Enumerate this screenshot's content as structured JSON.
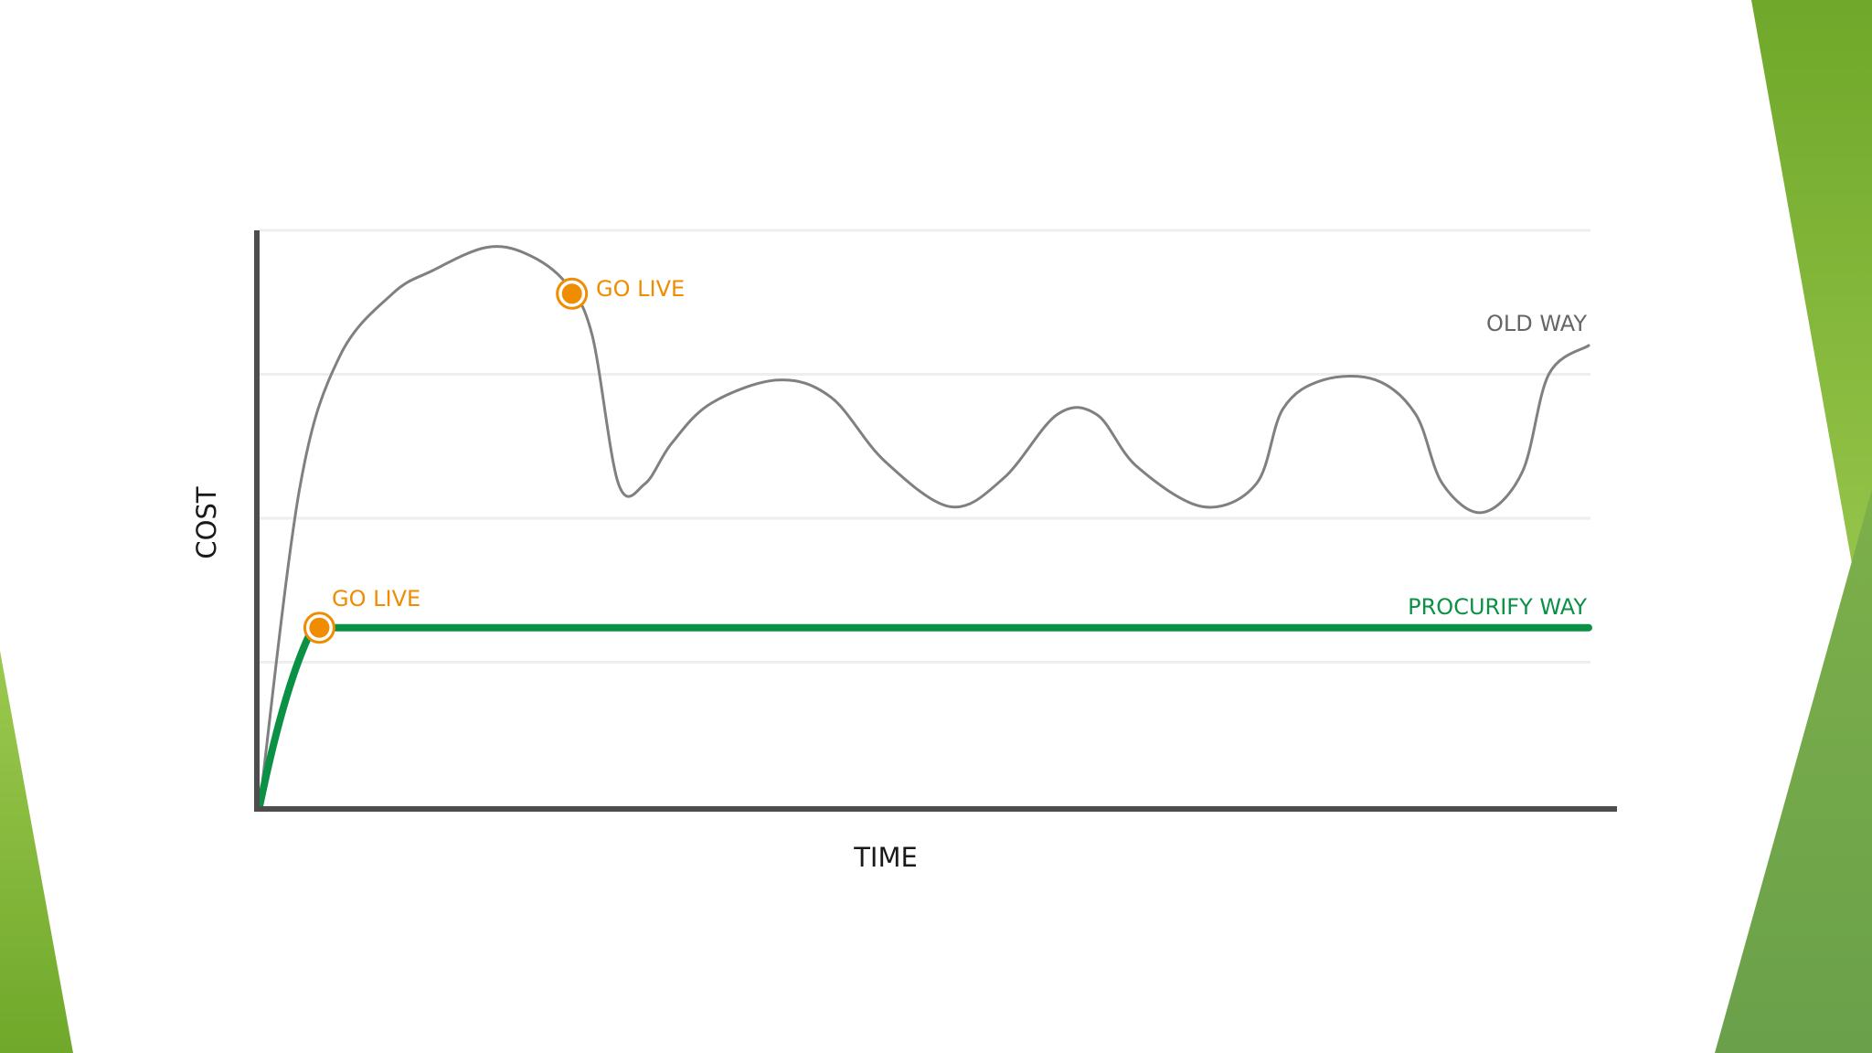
{
  "chart_data": {
    "type": "line",
    "xlabel": "TIME",
    "ylabel": "COST",
    "x_range": [
      0,
      100
    ],
    "y_range": [
      0,
      100
    ],
    "grid": true,
    "series": [
      {
        "name": "OLD WAY",
        "color": "#808080",
        "points": [
          [
            0,
            0
          ],
          [
            3,
            55
          ],
          [
            6,
            78
          ],
          [
            10,
            89
          ],
          [
            13,
            93
          ],
          [
            17,
            97
          ],
          [
            20,
            96
          ],
          [
            23,
            91
          ],
          [
            25,
            82
          ],
          [
            27,
            56
          ],
          [
            29,
            56
          ],
          [
            31,
            63
          ],
          [
            34,
            70
          ],
          [
            39,
            74
          ],
          [
            43,
            71
          ],
          [
            47,
            60
          ],
          [
            52,
            52
          ],
          [
            56,
            57
          ],
          [
            60,
            68
          ],
          [
            63,
            68
          ],
          [
            66,
            59
          ],
          [
            71,
            52
          ],
          [
            75,
            56
          ],
          [
            77,
            69
          ],
          [
            80,
            74
          ],
          [
            84,
            74
          ],
          [
            87,
            68
          ],
          [
            89,
            56
          ],
          [
            92,
            51
          ],
          [
            95,
            58
          ],
          [
            97,
            75
          ],
          [
            100,
            80
          ]
        ]
      },
      {
        "name": "PROCURIFY WAY",
        "color": "#0a9146",
        "points": [
          [
            0,
            0
          ],
          [
            4,
            31
          ],
          [
            100,
            31
          ]
        ]
      }
    ],
    "annotations": [
      {
        "text": "GO LIVE",
        "series": "OLD WAY",
        "x": 23.5,
        "y": 89,
        "color": "#f08c00"
      },
      {
        "text": "GO LIVE",
        "series": "PROCURIFY WAY",
        "x": 4.5,
        "y": 31,
        "color": "#f08c00"
      }
    ]
  },
  "decor": {
    "accent_light": "#8dc63f",
    "accent_dark": "#5a9e1a"
  }
}
